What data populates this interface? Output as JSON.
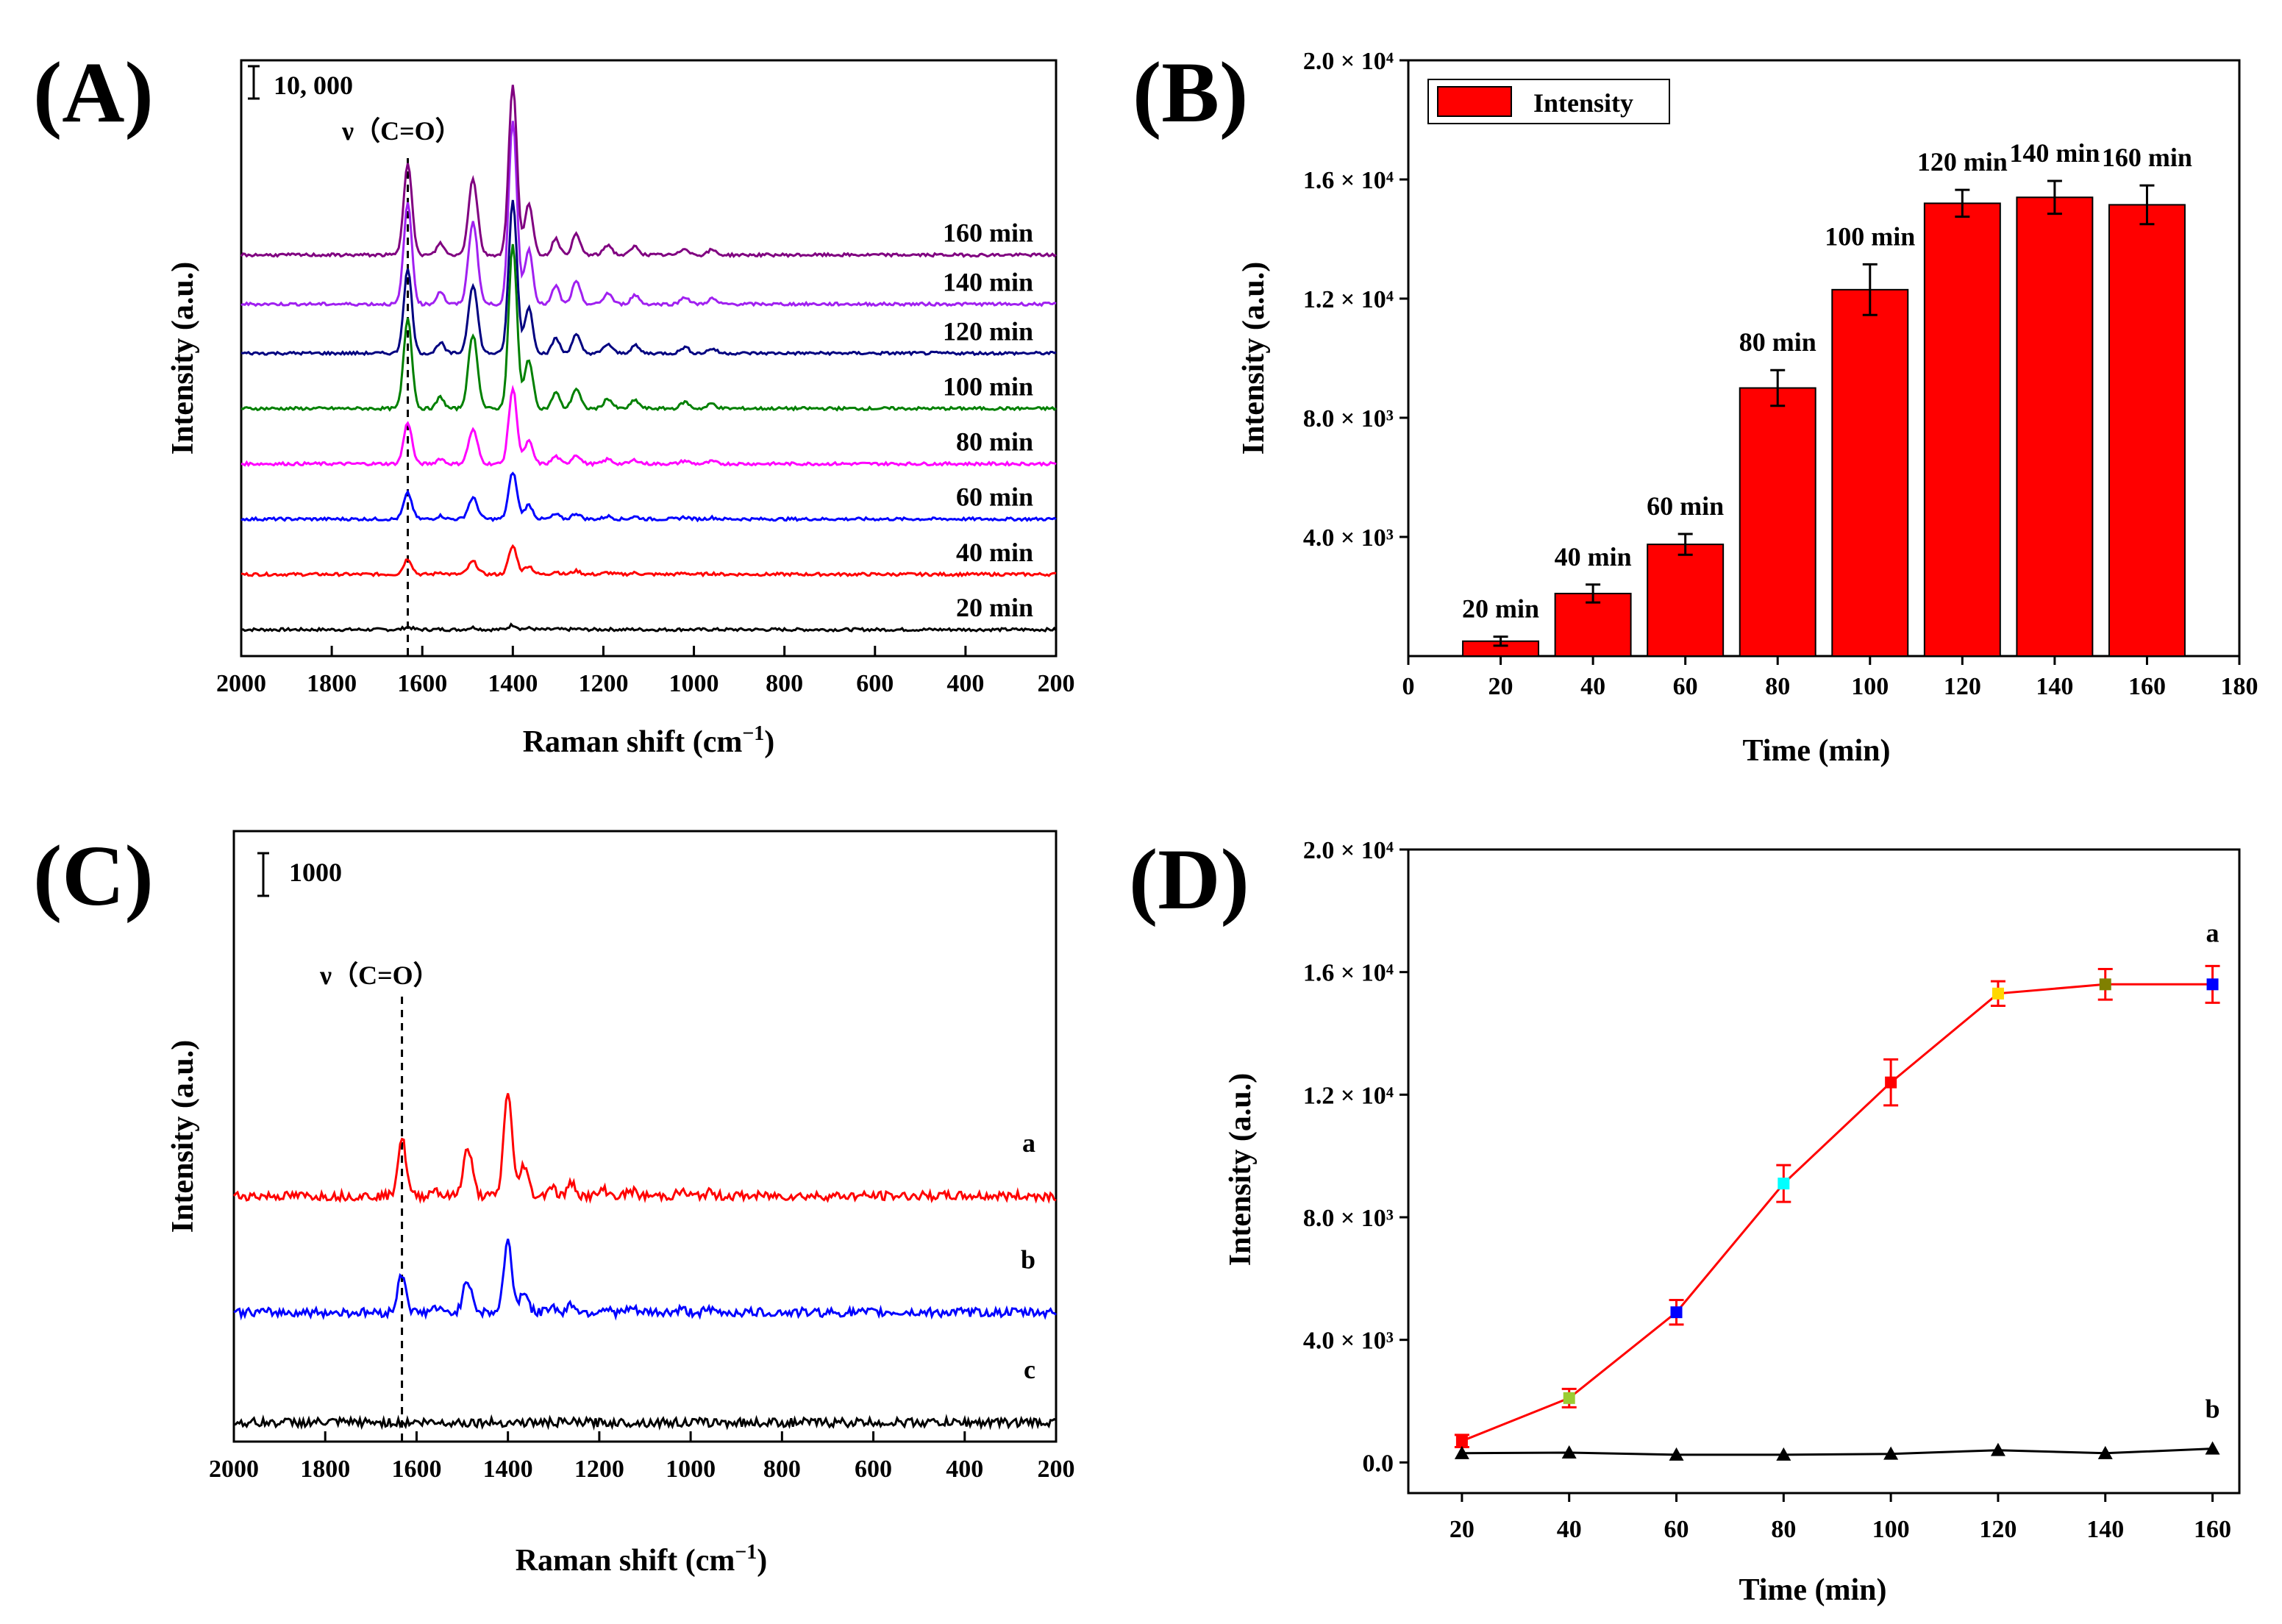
{
  "chart_data": [
    {
      "panel": "(A)",
      "type": "line",
      "xlabel": "Raman shift (cm",
      "xlabel_sup": "−1",
      "xlabel_close": ")",
      "ylabel": "Intensity (a.u.)",
      "xlim": [
        2000,
        200
      ],
      "xticks": [
        "2000",
        "1800",
        "1600",
        "1400",
        "1200",
        "1000",
        "800",
        "600",
        "400",
        "200"
      ],
      "scale_bar_label": "10, 000",
      "marker_label": "ν（C=O）",
      "marker_x": 1632,
      "series": [
        {
          "name": "20 min",
          "color": "#000000",
          "offset": 0,
          "peak_scale": 0.02
        },
        {
          "name": "40 min",
          "color": "#ff0000",
          "offset": 9000,
          "peak_scale": 0.12
        },
        {
          "name": "60 min",
          "color": "#0000ff",
          "offset": 18000,
          "peak_scale": 0.2
        },
        {
          "name": "80 min",
          "color": "#ff00ff",
          "offset": 27000,
          "peak_scale": 0.32
        },
        {
          "name": "100 min",
          "color": "#008000",
          "offset": 36000,
          "peak_scale": 0.7
        },
        {
          "name": "120 min",
          "color": "#000080",
          "offset": 45000,
          "peak_scale": 0.65
        },
        {
          "name": "140 min",
          "color": "#a020f0",
          "offset": 53000,
          "peak_scale": 0.78
        },
        {
          "name": "160 min",
          "color": "#800080",
          "offset": 61000,
          "peak_scale": 0.72
        }
      ]
    },
    {
      "panel": "(B)",
      "type": "bar",
      "xlabel": "Time (min)",
      "ylabel": "Intensity (a.u.)",
      "legend": "Intensity",
      "xlim": [
        0,
        180
      ],
      "ylim": [
        0,
        20000
      ],
      "xticks": [
        0,
        20,
        40,
        60,
        80,
        100,
        120,
        140,
        160,
        180
      ],
      "yticks": [
        4000,
        8000,
        12000,
        16000,
        20000
      ],
      "ytick_labels": [
        "4.0 × 10³",
        "8.0 × 10³",
        "1.2 × 10⁴",
        "1.6 × 10⁴",
        "2.0 × 10⁴"
      ],
      "x": [
        20,
        40,
        60,
        80,
        100,
        120,
        140,
        160
      ],
      "values": [
        500,
        2100,
        3750,
        9000,
        12300,
        15200,
        15400,
        15150
      ],
      "errors": [
        150,
        300,
        350,
        600,
        850,
        450,
        550,
        650
      ],
      "bar_labels": [
        "20 min",
        "40 min",
        "60 min",
        "80 min",
        "100 min",
        "120 min",
        "140 min",
        "160 min"
      ],
      "bar_color": "#ff0000"
    },
    {
      "panel": "(C)",
      "type": "line",
      "xlabel": "Raman shift (cm",
      "xlabel_sup": "−1",
      "xlabel_close": ")",
      "ylabel": "Intensity (a.u.)",
      "xlim": [
        2000,
        200
      ],
      "xticks": [
        "2000",
        "1800",
        "1600",
        "1400",
        "1200",
        "1000",
        "800",
        "600",
        "400",
        "200"
      ],
      "scale_bar_label": "1000",
      "marker_label": "ν（C=O）",
      "marker_x": 1632,
      "series": [
        {
          "name": "a",
          "color": "#ff0000",
          "offset": 4000,
          "peak_scale": 0.62
        },
        {
          "name": "b",
          "color": "#0000ff",
          "offset": 2200,
          "peak_scale": 0.42
        },
        {
          "name": "c",
          "color": "#000000",
          "offset": 500,
          "peak_scale": 0.0
        }
      ]
    },
    {
      "panel": "(D)",
      "type": "line",
      "xlabel": "Time (min)",
      "ylabel": "Intensity (a.u.)",
      "xlim": [
        10,
        165
      ],
      "ylim": [
        -1000,
        20000
      ],
      "xticks": [
        20,
        40,
        60,
        80,
        100,
        120,
        140,
        160
      ],
      "yticks": [
        0,
        4000,
        8000,
        12000,
        16000,
        20000
      ],
      "ytick_labels": [
        "0.0",
        "4.0 × 10³",
        "8.0 × 10³",
        "1.2 × 10⁴",
        "1.6 × 10⁴",
        "2.0 × 10⁴"
      ],
      "series": [
        {
          "name": "a",
          "color": "#ff0000",
          "marker": "square",
          "x": [
            20,
            40,
            60,
            80,
            100,
            120,
            140,
            160
          ],
          "values": [
            700,
            2100,
            4900,
            9100,
            12400,
            15300,
            15600,
            15600
          ],
          "errors": [
            200,
            300,
            400,
            600,
            750,
            400,
            500,
            600
          ],
          "marker_colors": [
            "#ff0000",
            "#9acd32",
            "#0000ff",
            "#00ffff",
            "#ff0000",
            "#ffd700",
            "#808000",
            "#0000ff"
          ]
        },
        {
          "name": "b",
          "color": "#000000",
          "marker": "triangle",
          "x": [
            20,
            40,
            60,
            80,
            100,
            120,
            140,
            160
          ],
          "values": [
            300,
            320,
            250,
            250,
            280,
            400,
            300,
            450
          ],
          "errors": [
            0,
            0,
            0,
            0,
            0,
            0,
            0,
            0
          ]
        }
      ]
    }
  ]
}
